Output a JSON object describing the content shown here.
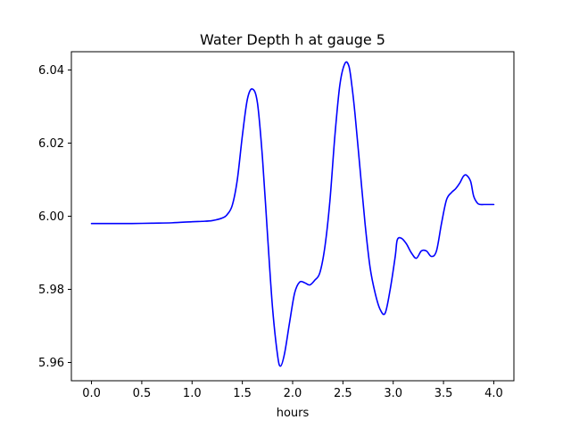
{
  "chart_data": {
    "type": "line",
    "title": "Water Depth h at gauge 5",
    "xlabel": "hours",
    "ylabel": "",
    "xlim": [
      -0.2,
      4.2
    ],
    "ylim": [
      5.955,
      6.045
    ],
    "grid": false,
    "legend": "none",
    "x_ticks": [
      0.0,
      0.5,
      1.0,
      1.5,
      2.0,
      2.5,
      3.0,
      3.5,
      4.0
    ],
    "x_tick_labels": [
      "0.0",
      "0.5",
      "1.0",
      "1.5",
      "2.0",
      "2.5",
      "3.0",
      "3.5",
      "4.0"
    ],
    "y_ticks": [
      5.96,
      5.98,
      6.0,
      6.02,
      6.04
    ],
    "y_tick_labels": [
      "5.96",
      "5.98",
      "6.00",
      "6.02",
      "6.04"
    ],
    "series": [
      {
        "color": "#0000ff",
        "x": [
          0.0,
          0.2,
          0.4,
          0.6,
          0.8,
          1.0,
          1.1,
          1.2,
          1.3,
          1.35,
          1.4,
          1.45,
          1.5,
          1.55,
          1.6,
          1.65,
          1.7,
          1.75,
          1.8,
          1.85,
          1.88,
          1.92,
          1.97,
          2.02,
          2.07,
          2.12,
          2.17,
          2.22,
          2.27,
          2.32,
          2.37,
          2.42,
          2.47,
          2.52,
          2.56,
          2.59,
          2.62,
          2.67,
          2.72,
          2.77,
          2.82,
          2.87,
          2.92,
          2.97,
          3.02,
          3.04,
          3.08,
          3.13,
          3.18,
          3.23,
          3.28,
          3.33,
          3.38,
          3.43,
          3.48,
          3.53,
          3.58,
          3.62,
          3.66,
          3.7,
          3.73,
          3.77,
          3.8,
          3.84,
          3.87,
          3.9,
          3.93,
          3.96,
          3.98,
          4.0
        ],
        "y": [
          5.998,
          5.998,
          5.998,
          5.9981,
          5.9982,
          5.9985,
          5.9986,
          5.9988,
          5.9995,
          6.0005,
          6.003,
          6.01,
          6.022,
          6.032,
          6.0348,
          6.031,
          6.016,
          5.995,
          5.975,
          5.962,
          5.959,
          5.9625,
          5.971,
          5.979,
          5.982,
          5.9818,
          5.9812,
          5.9825,
          5.9845,
          5.9915,
          6.004,
          6.022,
          6.036,
          6.0418,
          6.041,
          6.0355,
          6.028,
          6.013,
          5.998,
          5.986,
          5.979,
          5.9745,
          5.9735,
          5.98,
          5.989,
          5.9935,
          5.994,
          5.9925,
          5.99,
          5.9885,
          5.9905,
          5.9905,
          5.989,
          5.9905,
          5.998,
          6.0045,
          6.0065,
          6.0075,
          6.009,
          6.011,
          6.0112,
          6.0095,
          6.0055,
          6.0035,
          6.0032,
          6.0032,
          6.0032,
          6.0032,
          6.0032,
          6.0032
        ]
      }
    ]
  }
}
